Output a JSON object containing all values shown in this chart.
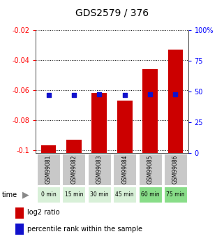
{
  "title": "GDS2579 / 376",
  "samples": [
    "GSM99081",
    "GSM99082",
    "GSM99083",
    "GSM99084",
    "GSM99085",
    "GSM99086"
  ],
  "time_labels": [
    "0 min",
    "15 min",
    "30 min",
    "45 min",
    "60 min",
    "75 min"
  ],
  "time_bg_colors": [
    "#d8f0d8",
    "#d8f0d8",
    "#d8f0d8",
    "#d8f0d8",
    "#88dd88",
    "#88dd88"
  ],
  "log2_values": [
    -0.097,
    -0.093,
    -0.062,
    -0.067,
    -0.046,
    -0.033
  ],
  "percentile_values": [
    47,
    47,
    48,
    47,
    48,
    48
  ],
  "ylim_left": [
    -0.102,
    -0.02
  ],
  "ylim_right": [
    0,
    100
  ],
  "yticks_left": [
    -0.1,
    -0.08,
    -0.06,
    -0.04,
    -0.02
  ],
  "yticks_right": [
    0,
    25,
    50,
    75,
    100
  ],
  "bar_color_red": "#cc0000",
  "bar_color_blue": "#1111cc",
  "sample_bg_color": "#c8c8c8",
  "legend_red_label": "log2 ratio",
  "legend_blue_label": "percentile rank within the sample",
  "bar_width": 0.6
}
